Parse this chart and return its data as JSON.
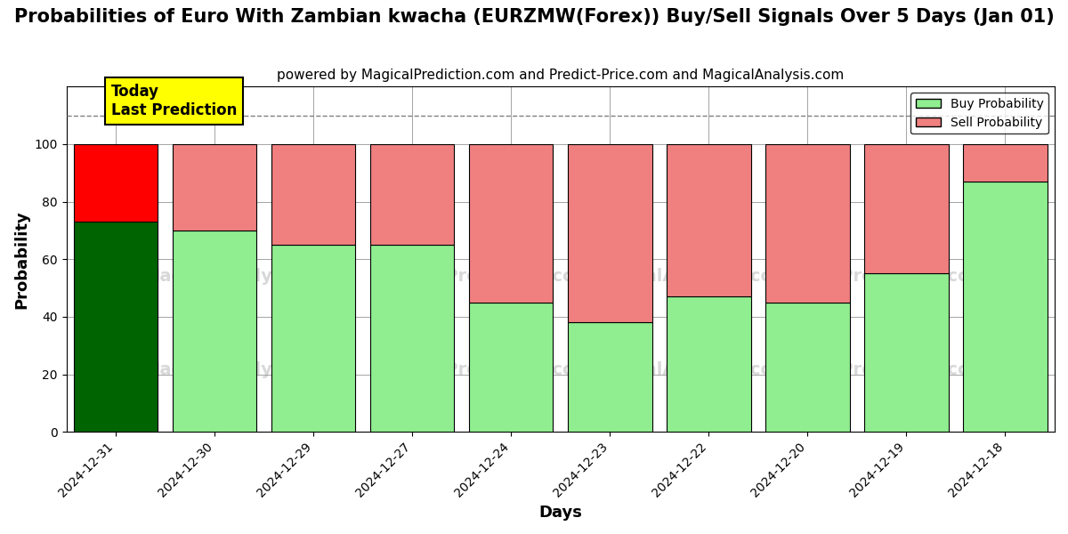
{
  "title": "Probabilities of Euro With Zambian kwacha (EURZMW(Forex)) Buy/Sell Signals Over 5 Days (Jan 01)",
  "subtitle": "powered by MagicalPrediction.com and Predict-Price.com and MagicalAnalysis.com",
  "xlabel": "Days",
  "ylabel": "Probability",
  "dates": [
    "2024-12-31",
    "2024-12-30",
    "2024-12-29",
    "2024-12-27",
    "2024-12-24",
    "2024-12-23",
    "2024-12-22",
    "2024-12-20",
    "2024-12-19",
    "2024-12-18"
  ],
  "buy_probs": [
    73,
    70,
    65,
    65,
    45,
    38,
    47,
    45,
    55,
    87
  ],
  "sell_probs": [
    27,
    30,
    35,
    35,
    55,
    62,
    53,
    55,
    45,
    13
  ],
  "buy_color_first": "#006400",
  "sell_color_first": "#ff0000",
  "buy_color_rest": "#90EE90",
  "sell_color_rest": "#F08080",
  "bar_edge_color": "#000000",
  "ylim": [
    0,
    120
  ],
  "yticks": [
    0,
    20,
    40,
    60,
    80,
    100
  ],
  "dashed_line_y": 110,
  "today_box_color": "#ffff00",
  "today_box_text": "Today\nLast Prediction",
  "legend_buy_label": "Buy Probability",
  "legend_sell_label": "Sell Probability",
  "title_fontsize": 15,
  "subtitle_fontsize": 11,
  "axis_label_fontsize": 13,
  "tick_fontsize": 10,
  "bar_width": 0.85
}
